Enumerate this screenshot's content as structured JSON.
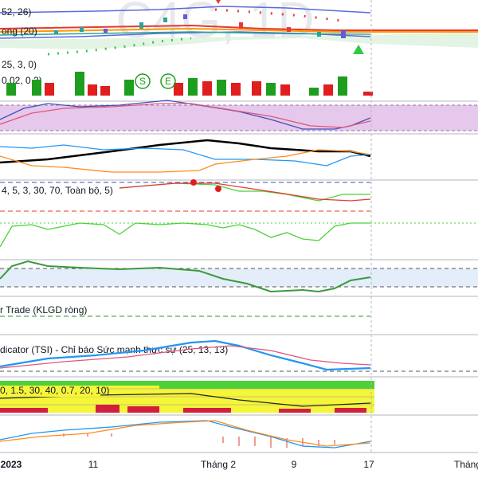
{
  "watermark": "C4G, 1D",
  "panes": {
    "main": {
      "label": "52, 26)",
      "label2": "ong (20)"
    },
    "volume": {
      "label": "25, 3, 0)",
      "label2": "0.02, 0.2)",
      "markers": [
        "S",
        "E"
      ]
    },
    "pane5": {
      "label": "4, 5, 3, 30, 70, Toàn bộ, 5)"
    },
    "trade": {
      "label": "r Trade (KLGD ròng)"
    },
    "tsi": {
      "label": "dicator (TSI) - Chỉ báo Sức mạnh thực sự (25, 13, 13)"
    },
    "grid": {
      "label": "0, 1.5, 30, 40, 0.7, 20, 10)"
    }
  },
  "x_axis": [
    "2023",
    "11",
    "Tháng 2",
    "9",
    "17",
    "Tháng"
  ]
}
